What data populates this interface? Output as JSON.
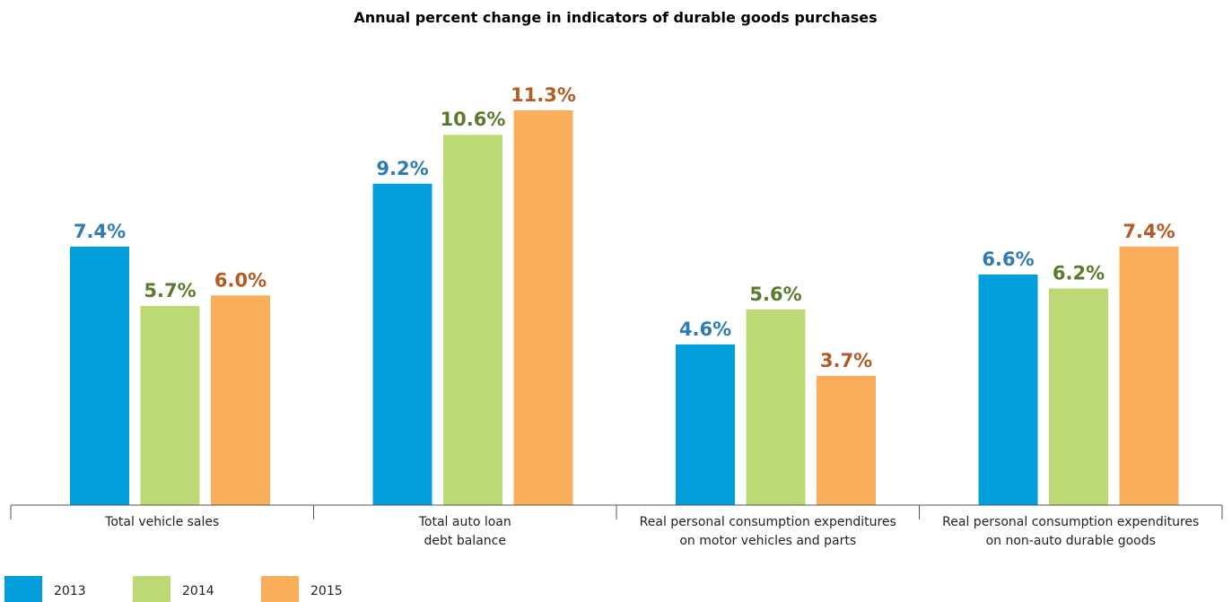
{
  "chart_data": {
    "type": "bar",
    "title": "Annual percent change in indicators of durable goods purchases",
    "categories": [
      [
        "Total vehicle sales"
      ],
      [
        "Total auto loan",
        "debt balance"
      ],
      [
        "Real personal consumption expenditures",
        "on motor vehicles and parts"
      ],
      [
        "Real personal consumption expenditures",
        "on non-auto durable goods"
      ]
    ],
    "series": [
      {
        "name": "2013",
        "color": "#009FDB",
        "label_color": "#2E7BB5",
        "values": [
          7.4,
          9.2,
          4.6,
          6.6
        ],
        "labels": [
          "7.4%",
          "9.2%",
          "4.6%",
          "6.6%"
        ]
      },
      {
        "name": "2014",
        "color": "#BDD976",
        "label_color": "#5C7A2E",
        "values": [
          5.7,
          10.6,
          5.6,
          6.2
        ],
        "labels": [
          "5.7%",
          "10.6%",
          "5.6%",
          "6.2%"
        ]
      },
      {
        "name": "2015",
        "color": "#FAAE5A",
        "label_color": "#B45A24",
        "values": [
          6.0,
          11.3,
          3.7,
          7.4
        ],
        "labels": [
          "6.0%",
          "11.3%",
          "3.7%",
          "7.4%"
        ]
      }
    ],
    "ylim": [
      0,
      12
    ],
    "grid": false,
    "legend_position": "bottom-left"
  }
}
